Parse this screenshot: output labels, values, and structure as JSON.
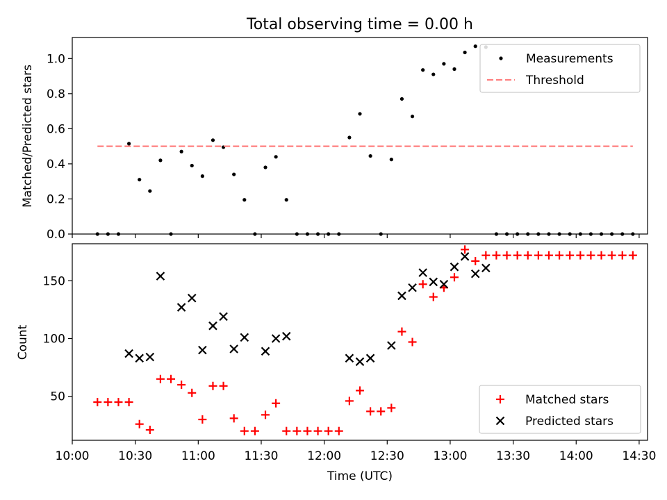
{
  "chart_data": [
    {
      "type": "scatter",
      "title": "Total observing time = 0.00 h",
      "xlabel": "",
      "ylabel": "Matched/Predicted stars",
      "ylim": [
        0,
        1.12
      ],
      "yticks": [
        0.0,
        0.2,
        0.4,
        0.6,
        0.8,
        1.0
      ],
      "ytick_labels": [
        "0.0",
        "0.2",
        "0.4",
        "0.6",
        "0.8",
        "1.0"
      ],
      "xlim": [
        "10:00",
        "14:34"
      ],
      "legend_position": "top-right",
      "series": [
        {
          "name": "Measurements",
          "color": "#000000",
          "marker": "dot",
          "x": [
            "10:12",
            "10:17",
            "10:22",
            "10:27",
            "10:32",
            "10:37",
            "10:42",
            "10:47",
            "10:52",
            "10:57",
            "11:02",
            "11:07",
            "11:12",
            "11:17",
            "11:22",
            "11:27",
            "11:32",
            "11:37",
            "11:42",
            "11:47",
            "11:52",
            "11:57",
            "12:02",
            "12:07",
            "12:12",
            "12:17",
            "12:22",
            "12:27",
            "12:32",
            "12:37",
            "12:42",
            "12:47",
            "12:52",
            "12:57",
            "13:02",
            "13:07",
            "13:12",
            "13:17",
            "13:22",
            "13:27",
            "13:32",
            "13:37",
            "13:42",
            "13:47",
            "13:52",
            "13:57",
            "14:02",
            "14:07",
            "14:12",
            "14:17",
            "14:22",
            "14:27"
          ],
          "y": [
            0,
            0,
            0,
            0.515,
            0.31,
            0.245,
            0.42,
            0,
            0.47,
            0.39,
            0.33,
            0.535,
            0.495,
            0.34,
            0.195,
            0,
            0.38,
            0.44,
            0.195,
            0,
            0,
            0,
            0,
            0,
            0.55,
            0.685,
            0.445,
            0,
            0.425,
            0.77,
            0.67,
            0.935,
            0.91,
            0.97,
            0.94,
            1.035,
            1.07,
            1.065,
            0,
            0,
            0,
            0,
            0,
            0,
            0,
            0,
            0,
            0,
            0,
            0,
            0,
            0
          ]
        },
        {
          "name": "Threshold",
          "color": "#ff7f7f",
          "style": "dashed",
          "x": [
            "10:12",
            "14:27"
          ],
          "y": [
            0.5,
            0.5
          ]
        }
      ]
    },
    {
      "type": "scatter",
      "title": "",
      "xlabel": "Time (UTC)",
      "ylabel": "Count",
      "ylim": [
        12,
        182
      ],
      "yticks": [
        50,
        100,
        150
      ],
      "ytick_labels": [
        "50",
        "100",
        "150"
      ],
      "xlim": [
        "10:00",
        "14:34"
      ],
      "xticks": [
        "10:00",
        "10:30",
        "11:00",
        "11:30",
        "12:00",
        "12:30",
        "13:00",
        "13:30",
        "14:00",
        "14:30"
      ],
      "legend_position": "bottom-right",
      "series": [
        {
          "name": "Matched stars",
          "color": "#ff0000",
          "marker": "plus",
          "x": [
            "10:12",
            "10:17",
            "10:22",
            "10:27",
            "10:32",
            "10:37",
            "10:42",
            "10:47",
            "10:52",
            "10:57",
            "11:02",
            "11:07",
            "11:12",
            "11:17",
            "11:22",
            "11:27",
            "11:32",
            "11:37",
            "11:42",
            "11:47",
            "11:52",
            "11:57",
            "12:02",
            "12:07",
            "12:12",
            "12:17",
            "12:22",
            "12:27",
            "12:32",
            "12:37",
            "12:42",
            "12:47",
            "12:52",
            "12:57",
            "13:02",
            "13:07",
            "13:12",
            "13:17",
            "13:22",
            "13:27",
            "13:32",
            "13:37",
            "13:42",
            "13:47",
            "13:52",
            "13:57",
            "14:02",
            "14:07",
            "14:12",
            "14:17",
            "14:22",
            "14:27"
          ],
          "y": [
            45,
            45,
            45,
            45,
            26,
            21,
            65,
            65,
            60,
            53,
            30,
            59,
            59,
            31,
            20,
            20,
            34,
            44,
            20,
            20,
            20,
            20,
            20,
            20,
            46,
            55,
            37,
            37,
            40,
            106,
            97,
            147,
            136,
            144,
            153,
            177,
            167,
            172,
            172,
            172,
            172,
            172,
            172,
            172,
            172,
            172,
            172,
            172,
            172,
            172,
            172,
            172
          ]
        },
        {
          "name": "Predicted stars",
          "color": "#000000",
          "marker": "x",
          "x": [
            "10:27",
            "10:32",
            "10:37",
            "10:42",
            "10:52",
            "10:57",
            "11:02",
            "11:07",
            "11:12",
            "11:17",
            "11:22",
            "11:32",
            "11:37",
            "11:42",
            "12:12",
            "12:17",
            "12:22",
            "12:32",
            "12:37",
            "12:42",
            "12:47",
            "12:52",
            "12:57",
            "13:02",
            "13:07",
            "13:12",
            "13:17"
          ],
          "y": [
            87,
            83,
            84,
            154,
            127,
            135,
            90,
            111,
            119,
            91,
            101,
            89,
            100,
            102,
            83,
            80,
            83,
            94,
            137,
            144,
            157,
            149,
            147,
            162,
            171,
            156,
            161
          ]
        }
      ]
    }
  ]
}
